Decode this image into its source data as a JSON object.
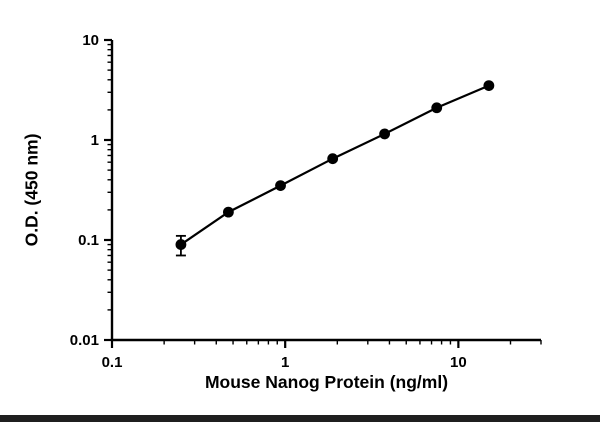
{
  "chart_data": {
    "type": "scatter",
    "title": "",
    "xlabel": "Mouse Nanog Protein (ng/ml)",
    "ylabel": "O.D. (450 nm)",
    "x_scale": "log",
    "y_scale": "log",
    "xlim": [
      0.1,
      30
    ],
    "ylim": [
      0.01,
      10
    ],
    "x_ticks": [
      0.1,
      1,
      10
    ],
    "x_tick_labels": [
      "0.1",
      "1",
      "10"
    ],
    "y_ticks": [
      0.01,
      0.1,
      1,
      10
    ],
    "y_tick_labels": [
      "0.01",
      "0.1",
      "1",
      "10"
    ],
    "grid": false,
    "legend": false,
    "series": [
      {
        "name": "standard-curve",
        "marker": "circle",
        "color": "#000000",
        "x": [
          0.25,
          0.47,
          0.94,
          1.88,
          3.75,
          7.5,
          15
        ],
        "y": [
          0.09,
          0.19,
          0.35,
          0.65,
          1.15,
          2.1,
          3.5
        ],
        "y_err": [
          0.02,
          0,
          0,
          0,
          0,
          0,
          0
        ]
      }
    ]
  },
  "colors": {
    "axis": "#000000",
    "background": "#ffffff",
    "bottom_bar": "#1f1f1f"
  }
}
